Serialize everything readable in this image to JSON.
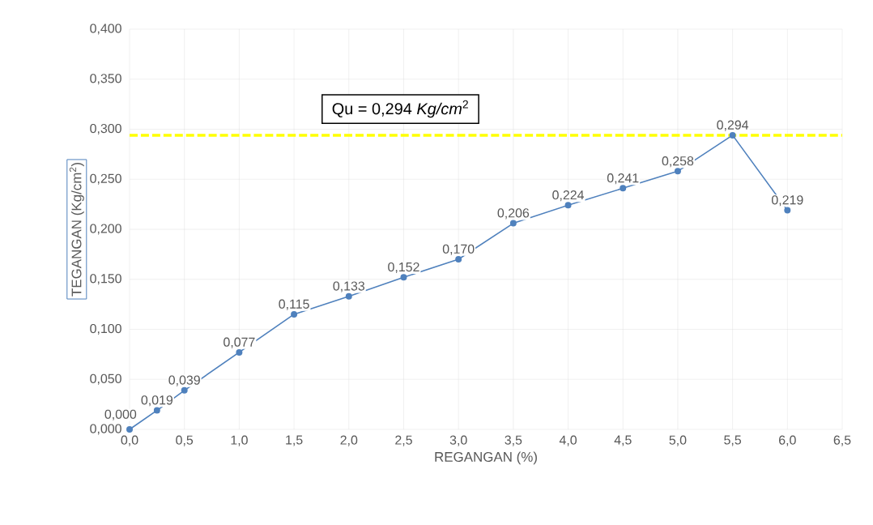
{
  "chart_data": {
    "type": "line",
    "xlabel": "REGANGAN (%)",
    "ylabel": "TEGANGAN (Kg/cm$^{2}$)",
    "x": [
      0,
      0.25,
      0.5,
      1.0,
      1.5,
      2.0,
      2.5,
      3.0,
      3.5,
      4.0,
      4.5,
      5.0,
      5.5,
      6.0
    ],
    "series": [
      {
        "color": "#4f81bd",
        "values": [
          0.0,
          0.019,
          0.039,
          0.077,
          0.115,
          0.133,
          0.152,
          0.17,
          0.206,
          0.224,
          0.241,
          0.258,
          0.294,
          0.219
        ],
        "value_labels": [
          "0,000",
          "0,019",
          "0,039",
          "0,077",
          "0,115",
          "0,133",
          "0,152",
          "0,170",
          "0,206",
          "0,224",
          "0,241",
          "0,258",
          "0,294",
          "0,219"
        ]
      }
    ],
    "xlim": [
      0,
      6.5
    ],
    "xticks": [
      {
        "value": 0,
        "label": "0,0"
      },
      {
        "value": 0.5,
        "label": "0,5"
      },
      {
        "value": 1,
        "label": "1,0"
      },
      {
        "value": 1.5,
        "label": "1,5"
      },
      {
        "value": 2,
        "label": "2,0"
      },
      {
        "value": 2.5,
        "label": "2,5"
      },
      {
        "value": 3,
        "label": "3,0"
      },
      {
        "value": 3.5,
        "label": "3,5"
      },
      {
        "value": 4,
        "label": "4,0"
      },
      {
        "value": 4.5,
        "label": "4,5"
      },
      {
        "value": 5,
        "label": "5,0"
      },
      {
        "value": 5.5,
        "label": "5,5"
      },
      {
        "value": 6,
        "label": "6,0"
      },
      {
        "value": 6.5,
        "label": "6,5"
      }
    ],
    "ylim": [
      0,
      0.4
    ],
    "yticks": [
      {
        "value": 0,
        "label": "0,000"
      },
      {
        "value": 0.05,
        "label": "0,050"
      },
      {
        "value": 0.1,
        "label": "0,100"
      },
      {
        "value": 0.15,
        "label": "0,150"
      },
      {
        "value": 0.2,
        "label": "0,200"
      },
      {
        "value": 0.25,
        "label": "0,250"
      },
      {
        "value": 0.3,
        "label": "0,300"
      },
      {
        "value": 0.35,
        "label": "0,350"
      },
      {
        "value": 0.4,
        "label": "0,400"
      }
    ],
    "ref_lines": [
      {
        "axis": "y",
        "value": 0.294,
        "label": "Qu = 0,294 *Kg/cm*$^{2}$",
        "color": "#ffff00",
        "line_style": "dashed"
      }
    ],
    "grid": true,
    "marker": "circle",
    "line_style": "solid"
  }
}
